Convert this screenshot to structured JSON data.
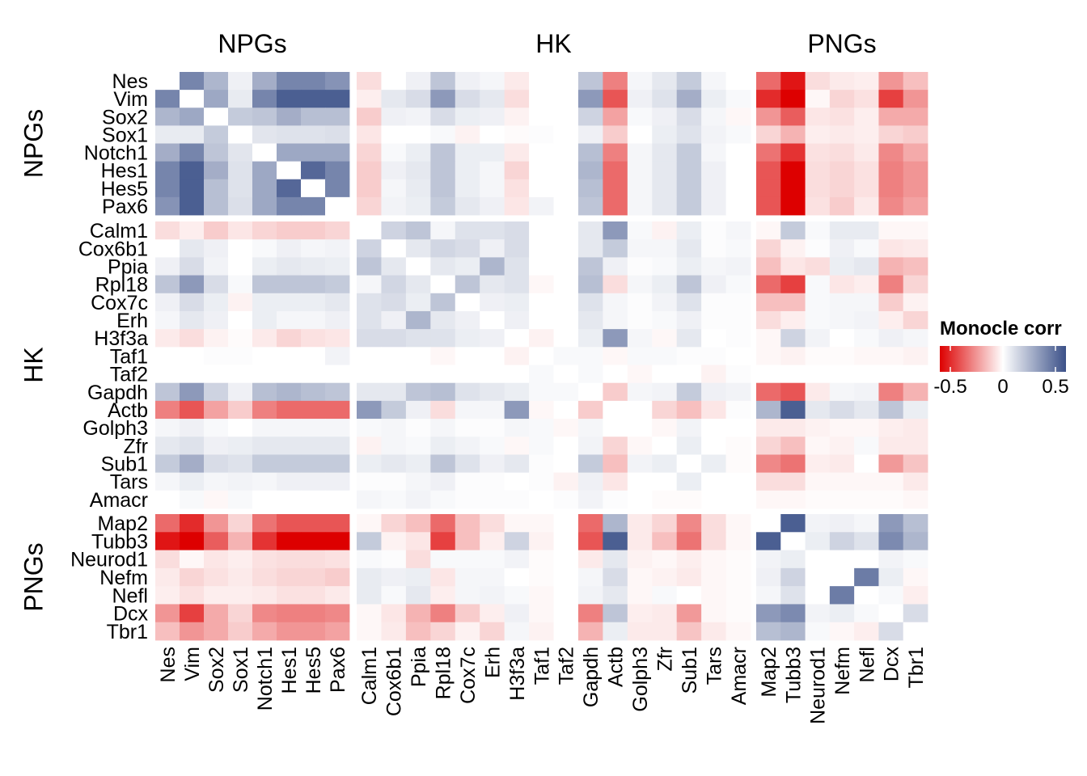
{
  "chart_data": {
    "type": "heatmap",
    "title": "",
    "xlabel": "",
    "ylabel": "",
    "genes": [
      "Nes",
      "Vim",
      "Sox2",
      "Sox1",
      "Notch1",
      "Hes1",
      "Hes5",
      "Pax6",
      "Calm1",
      "Cox6b1",
      "Ppia",
      "Rpl18",
      "Cox7c",
      "Erh",
      "H3f3a",
      "Taf1",
      "Taf2",
      "Gapdh",
      "Actb",
      "Golph3",
      "Zfr",
      "Sub1",
      "Tars",
      "Amacr",
      "Map2",
      "Tubb3",
      "Neurod1",
      "Nefm",
      "Nefl",
      "Dcx",
      "Tbr1"
    ],
    "groups": [
      {
        "name": "NPGs",
        "start": 0,
        "end": 8
      },
      {
        "name": "HK",
        "start": 8,
        "end": 24
      },
      {
        "name": "PNGs",
        "start": 24,
        "end": 31
      }
    ],
    "diagonal": "blank",
    "values": [
      [
        0,
        0.42,
        0.25,
        0.05,
        0.28,
        0.42,
        0.42,
        0.37,
        -0.08,
        0,
        0.05,
        0.2,
        0.05,
        0.03,
        -0.05,
        0,
        0,
        0.2,
        -0.3,
        0.03,
        0.08,
        0.18,
        0.03,
        0,
        -0.35,
        -0.55,
        -0.08,
        -0.05,
        -0.04,
        -0.25,
        -0.15
      ],
      [
        0.42,
        0,
        0.3,
        0.07,
        0.42,
        0.55,
        0.55,
        0.55,
        -0.04,
        0.08,
        0.12,
        0.35,
        0.12,
        0.08,
        -0.08,
        0,
        0,
        0.35,
        -0.4,
        0.05,
        0.1,
        0.28,
        0.06,
        0.02,
        -0.5,
        -0.6,
        -0.02,
        -0.1,
        -0.07,
        -0.45,
        -0.25
      ],
      [
        0.25,
        0.3,
        0,
        0.18,
        0.2,
        0.28,
        0.22,
        0.22,
        -0.12,
        0.05,
        0.04,
        0.12,
        0.06,
        0.05,
        -0.03,
        0,
        0,
        0.15,
        -0.22,
        0.02,
        0.05,
        0.12,
        0.03,
        -0.02,
        -0.25,
        -0.38,
        -0.06,
        -0.07,
        -0.04,
        -0.2,
        -0.2
      ],
      [
        0.07,
        0.07,
        0.18,
        0,
        0.09,
        0.1,
        0.1,
        0.11,
        -0.06,
        0,
        0,
        0.02,
        -0.03,
        0,
        -0.01,
        0.01,
        0,
        0.05,
        -0.12,
        0,
        0.06,
        0.1,
        0.04,
        0.02,
        -0.1,
        -0.18,
        -0.04,
        -0.05,
        -0.04,
        -0.1,
        -0.12
      ],
      [
        0.28,
        0.42,
        0.2,
        0.09,
        0,
        0.3,
        0.3,
        0.3,
        -0.1,
        0.02,
        0.06,
        0.2,
        0.06,
        0.06,
        -0.05,
        0,
        0,
        0.22,
        -0.3,
        0.03,
        0.08,
        0.18,
        0.03,
        0,
        -0.33,
        -0.48,
        -0.07,
        -0.08,
        -0.05,
        -0.28,
        -0.2
      ],
      [
        0.42,
        0.55,
        0.28,
        0.1,
        0.3,
        0,
        0.52,
        0.42,
        -0.12,
        0.05,
        0.08,
        0.2,
        0.06,
        0.03,
        -0.1,
        0,
        0,
        0.25,
        -0.35,
        0.03,
        0.08,
        0.18,
        0.05,
        0,
        -0.4,
        -0.6,
        -0.08,
        -0.1,
        -0.07,
        -0.3,
        -0.25
      ],
      [
        0.42,
        0.55,
        0.22,
        0.1,
        0.3,
        0.52,
        0,
        0.42,
        -0.12,
        0.03,
        0.07,
        0.2,
        0.06,
        0.03,
        -0.07,
        0,
        0,
        0.22,
        -0.35,
        0.03,
        0.08,
        0.18,
        0.05,
        0,
        -0.4,
        -0.6,
        -0.08,
        -0.1,
        -0.07,
        -0.3,
        -0.25
      ],
      [
        0.37,
        0.55,
        0.22,
        0.11,
        0.3,
        0.42,
        0.42,
        0,
        -0.1,
        0.04,
        0.06,
        0.18,
        0.08,
        0.05,
        -0.06,
        0.04,
        0,
        0.2,
        -0.35,
        0.03,
        0.08,
        0.18,
        0.05,
        0,
        -0.4,
        -0.6,
        -0.07,
        -0.12,
        -0.05,
        -0.28,
        -0.22
      ],
      [
        -0.08,
        -0.04,
        -0.12,
        -0.06,
        -0.1,
        -0.12,
        -0.12,
        -0.1,
        0,
        0.15,
        0.2,
        0.03,
        0.1,
        0.1,
        0.12,
        0,
        0,
        0.08,
        0.35,
        0.02,
        -0.03,
        0.06,
        0.01,
        0.03,
        -0.02,
        0.18,
        0.02,
        0.07,
        0.07,
        -0.02,
        -0.02
      ],
      [
        0,
        0.08,
        0.05,
        0,
        0.02,
        0.05,
        0.03,
        0.04,
        0.15,
        0,
        0.08,
        0.14,
        0.12,
        0.05,
        0.12,
        0,
        0,
        0.08,
        0.18,
        0.03,
        0.03,
        0.08,
        0.01,
        0.02,
        -0.1,
        -0.03,
        0.01,
        0.05,
        0.02,
        -0.06,
        -0.05
      ],
      [
        0.05,
        0.12,
        0.04,
        0,
        0.06,
        0.08,
        0.07,
        0.06,
        0.2,
        0.08,
        0,
        0.08,
        0.06,
        0.25,
        0.1,
        0,
        0,
        0.2,
        0.05,
        0.01,
        0.02,
        0.06,
        0.03,
        0.04,
        -0.15,
        -0.06,
        -0.08,
        0.06,
        0.08,
        -0.18,
        -0.15
      ],
      [
        0.2,
        0.35,
        0.12,
        0.02,
        0.2,
        0.2,
        0.2,
        0.18,
        0.03,
        0.14,
        0.08,
        0,
        0.2,
        0.08,
        0.1,
        -0.02,
        0,
        0.22,
        -0.08,
        0.03,
        0.06,
        0.2,
        0.05,
        0.02,
        -0.35,
        -0.45,
        0.02,
        -0.06,
        -0.04,
        -0.3,
        -0.1
      ],
      [
        0.05,
        0.12,
        0.06,
        -0.03,
        0.06,
        0.06,
        0.06,
        0.08,
        0.1,
        0.12,
        0.06,
        0.2,
        0,
        0.05,
        0.06,
        0,
        0,
        0.1,
        0.03,
        0.01,
        0.04,
        0.1,
        0.01,
        0.01,
        -0.15,
        -0.15,
        0.02,
        0.03,
        0.03,
        -0.12,
        -0.03
      ],
      [
        0.03,
        0.08,
        0.05,
        0,
        0.06,
        0.03,
        0.03,
        0.05,
        0.1,
        0.05,
        0.25,
        0.08,
        0.05,
        0,
        0.05,
        0,
        0,
        0.08,
        0.03,
        0.01,
        0.02,
        0.05,
        0.01,
        0.01,
        -0.08,
        -0.04,
        0.02,
        0.03,
        0.04,
        -0.04,
        -0.1
      ],
      [
        -0.05,
        -0.08,
        -0.03,
        -0.01,
        -0.05,
        -0.1,
        -0.07,
        -0.06,
        0.12,
        0.12,
        0.1,
        0.1,
        0.06,
        0.05,
        0,
        -0.03,
        0,
        0.06,
        0.35,
        0.03,
        -0.02,
        0.08,
        0,
        0.01,
        -0.02,
        0.15,
        0.04,
        0,
        0.02,
        0.05,
        0.03
      ],
      [
        0,
        0,
        0.01,
        0.01,
        0,
        0,
        0,
        0.04,
        0,
        0,
        0,
        -0.02,
        0,
        0,
        -0.03,
        0,
        0.02,
        0.02,
        -0.02,
        0.02,
        0.02,
        0.01,
        0.01,
        0,
        -0.02,
        -0.03,
        -0.01,
        -0.01,
        -0.02,
        -0.02,
        -0.03
      ],
      [
        0,
        0,
        0,
        0,
        0,
        0,
        0,
        0,
        0,
        0,
        0,
        0,
        0,
        0,
        0,
        0.02,
        0,
        0.02,
        0,
        -0.02,
        0,
        0,
        -0.03,
        0.01,
        0,
        0,
        0,
        0,
        0,
        0,
        0
      ],
      [
        0.2,
        0.35,
        0.15,
        0.05,
        0.22,
        0.25,
        0.22,
        0.2,
        0.08,
        0.08,
        0.2,
        0.22,
        0.1,
        0.08,
        0.06,
        0.02,
        0.02,
        0,
        -0.12,
        0.03,
        0.04,
        0.18,
        0.05,
        0.04,
        -0.35,
        -0.4,
        -0.05,
        0.03,
        0.04,
        -0.3,
        -0.18
      ],
      [
        -0.3,
        -0.4,
        -0.22,
        -0.12,
        -0.3,
        -0.35,
        -0.35,
        -0.35,
        0.35,
        0.18,
        0.05,
        -0.08,
        0.03,
        0.03,
        0.35,
        -0.02,
        0,
        -0.12,
        0,
        0,
        -0.1,
        -0.15,
        -0.06,
        0.01,
        0.25,
        0.55,
        0.08,
        0.12,
        0.08,
        0.2,
        0.06
      ],
      [
        0.03,
        0.05,
        0.02,
        0,
        0.03,
        0.03,
        0.03,
        0.03,
        0.02,
        0.03,
        0.01,
        0.03,
        0.01,
        0.01,
        0.03,
        0.02,
        -0.02,
        0.03,
        0,
        0,
        -0.02,
        0.04,
        0,
        0,
        -0.05,
        -0.05,
        -0.03,
        -0.02,
        -0.02,
        -0.04,
        -0.05
      ],
      [
        0.08,
        0.1,
        0.05,
        0.06,
        0.08,
        0.08,
        0.08,
        0.08,
        -0.03,
        0.03,
        0.02,
        0.06,
        0.04,
        0.02,
        -0.02,
        0.02,
        0,
        0.04,
        -0.1,
        -0.02,
        0,
        0.06,
        0,
        -0.01,
        -0.1,
        -0.15,
        -0.02,
        -0.03,
        0.02,
        -0.05,
        -0.05
      ],
      [
        0.18,
        0.28,
        0.12,
        0.1,
        0.18,
        0.18,
        0.18,
        0.18,
        0.06,
        0.08,
        0.06,
        0.2,
        0.1,
        0.05,
        0.08,
        0.01,
        0,
        0.18,
        -0.15,
        0.04,
        0.06,
        0,
        0.06,
        -0.01,
        -0.28,
        -0.33,
        -0.04,
        -0.05,
        0,
        -0.24,
        -0.14
      ],
      [
        0.03,
        0.06,
        0.03,
        0.04,
        0.03,
        0.05,
        0.05,
        0.05,
        0.01,
        0.01,
        0.03,
        0.05,
        0.01,
        0.01,
        0,
        0.01,
        -0.03,
        0.05,
        -0.06,
        0,
        0,
        0.06,
        0,
        0,
        -0.08,
        -0.08,
        -0.02,
        -0.02,
        -0.02,
        -0.02,
        -0.05
      ],
      [
        0,
        0.02,
        -0.02,
        0.02,
        0,
        0,
        0,
        0,
        0.03,
        0.02,
        0.04,
        0.02,
        0.01,
        0.01,
        0.01,
        0,
        0.01,
        0.04,
        0.01,
        0,
        -0.01,
        -0.01,
        0,
        0,
        -0.02,
        -0.02,
        -0.01,
        -0.01,
        -0.01,
        -0.01,
        -0.02
      ],
      [
        -0.35,
        -0.5,
        -0.25,
        -0.1,
        -0.33,
        -0.4,
        -0.4,
        -0.4,
        -0.02,
        -0.1,
        -0.15,
        -0.35,
        -0.15,
        -0.08,
        -0.02,
        -0.02,
        0,
        -0.35,
        0.25,
        -0.05,
        -0.1,
        -0.28,
        -0.08,
        -0.02,
        0,
        0.55,
        0.04,
        0.05,
        0.03,
        0.35,
        0.22
      ],
      [
        -0.55,
        -0.6,
        -0.38,
        -0.18,
        -0.48,
        -0.6,
        -0.6,
        -0.6,
        0.18,
        -0.03,
        -0.06,
        -0.45,
        -0.15,
        -0.04,
        0.15,
        -0.03,
        0,
        -0.4,
        0.55,
        -0.05,
        -0.15,
        -0.33,
        -0.08,
        -0.02,
        0.55,
        0,
        0.06,
        0.15,
        0.1,
        0.4,
        0.25
      ],
      [
        -0.08,
        -0.02,
        -0.06,
        -0.04,
        -0.07,
        -0.08,
        -0.08,
        -0.07,
        0.02,
        0.01,
        -0.08,
        0.02,
        0.02,
        0.02,
        0.04,
        -0.01,
        0,
        -0.05,
        0.08,
        -0.03,
        -0.02,
        -0.04,
        -0.02,
        -0.01,
        0.04,
        0.06,
        0,
        0,
        0,
        0.04,
        0.02
      ],
      [
        -0.05,
        -0.1,
        -0.07,
        -0.05,
        -0.08,
        -0.1,
        -0.1,
        -0.12,
        0.07,
        0.05,
        0.06,
        -0.06,
        0.03,
        0.03,
        0,
        -0.01,
        0,
        0.03,
        0.12,
        -0.02,
        -0.03,
        -0.05,
        -0.02,
        -0.01,
        0.05,
        0.15,
        0,
        0,
        0.45,
        0.06,
        -0.02
      ],
      [
        -0.04,
        -0.07,
        -0.04,
        -0.04,
        -0.05,
        -0.07,
        -0.07,
        -0.05,
        0.07,
        0.02,
        0.08,
        -0.04,
        0.03,
        0.04,
        0.02,
        -0.02,
        0,
        0.04,
        0.08,
        -0.02,
        0.02,
        0,
        -0.02,
        -0.01,
        0.03,
        0.1,
        0,
        0.45,
        0,
        0.02,
        -0.04
      ],
      [
        -0.25,
        -0.45,
        -0.2,
        -0.1,
        -0.28,
        -0.3,
        -0.3,
        -0.28,
        -0.02,
        -0.06,
        -0.18,
        -0.3,
        -0.12,
        -0.04,
        0.05,
        -0.02,
        0,
        -0.3,
        0.2,
        -0.04,
        -0.05,
        -0.24,
        -0.02,
        -0.01,
        0.35,
        0.4,
        0.04,
        0.06,
        0.02,
        0,
        0.12
      ],
      [
        -0.15,
        -0.25,
        -0.2,
        -0.12,
        -0.2,
        -0.25,
        -0.25,
        -0.22,
        -0.02,
        -0.05,
        -0.15,
        -0.1,
        -0.03,
        -0.1,
        0.03,
        -0.03,
        0,
        -0.18,
        0.06,
        -0.05,
        -0.05,
        -0.14,
        -0.05,
        -0.02,
        0.22,
        0.25,
        0.02,
        -0.02,
        -0.04,
        0.12,
        0
      ]
    ],
    "color_scale": {
      "min": -0.6,
      "max": 0.6,
      "low_color": "#DD0000",
      "mid_color": "#FFFFFF",
      "high_color": "#3B5088"
    },
    "legend": {
      "title": "Monocle corr",
      "ticks": [
        -0.5,
        0,
        0.5
      ],
      "tick_labels": [
        "-0.5",
        "0",
        "0.5"
      ],
      "placement": "right"
    },
    "grid": false
  }
}
